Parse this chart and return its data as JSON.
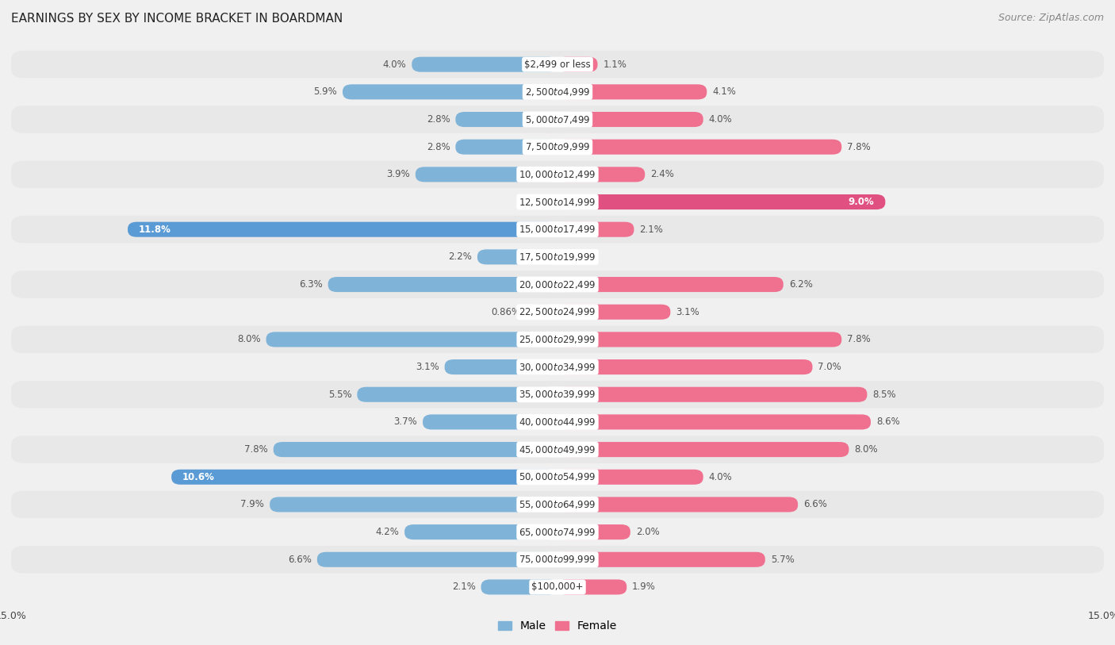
{
  "title": "EARNINGS BY SEX BY INCOME BRACKET IN BOARDMAN",
  "source": "Source: ZipAtlas.com",
  "categories": [
    "$2,499 or less",
    "$2,500 to $4,999",
    "$5,000 to $7,499",
    "$7,500 to $9,999",
    "$10,000 to $12,499",
    "$12,500 to $14,999",
    "$15,000 to $17,499",
    "$17,500 to $19,999",
    "$20,000 to $22,499",
    "$22,500 to $24,999",
    "$25,000 to $29,999",
    "$30,000 to $34,999",
    "$35,000 to $39,999",
    "$40,000 to $44,999",
    "$45,000 to $49,999",
    "$50,000 to $54,999",
    "$55,000 to $64,999",
    "$65,000 to $74,999",
    "$75,000 to $99,999",
    "$100,000+"
  ],
  "male_values": [
    4.0,
    5.9,
    2.8,
    2.8,
    3.9,
    0.0,
    11.8,
    2.2,
    6.3,
    0.86,
    8.0,
    3.1,
    5.5,
    3.7,
    7.8,
    10.6,
    7.9,
    4.2,
    6.6,
    2.1
  ],
  "female_values": [
    1.1,
    4.1,
    4.0,
    7.8,
    2.4,
    9.0,
    2.1,
    0.0,
    6.2,
    3.1,
    7.8,
    7.0,
    8.5,
    8.6,
    8.0,
    4.0,
    6.6,
    2.0,
    5.7,
    1.9
  ],
  "male_color": "#7fb3d8",
  "female_color": "#f07090",
  "male_highlight_color": "#5b9bd5",
  "female_highlight_color": "#e05080",
  "xlim": 15.0,
  "bar_height": 0.55,
  "row_color_even": "#e8e8e8",
  "row_color_odd": "#f0f0f0",
  "bg_color": "#f0f0f0",
  "title_fontsize": 11,
  "label_fontsize": 8.5,
  "category_fontsize": 8.5,
  "legend_fontsize": 10,
  "source_fontsize": 9,
  "inside_label_threshold_male": 9.0,
  "inside_label_threshold_female": 9.0
}
